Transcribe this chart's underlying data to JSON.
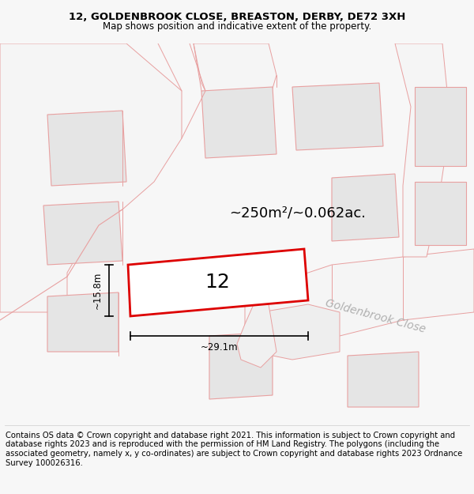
{
  "title_line1": "12, GOLDENBROOK CLOSE, BREASTON, DERBY, DE72 3XH",
  "title_line2": "Map shows position and indicative extent of the property.",
  "footer_text": "Contains OS data © Crown copyright and database right 2021. This information is subject to Crown copyright and database rights 2023 and is reproduced with the permission of HM Land Registry. The polygons (including the associated geometry, namely x, y co-ordinates) are subject to Crown copyright and database rights 2023 Ordnance Survey 100026316.",
  "area_text": "~250m²/~0.062ac.",
  "number_label": "12",
  "width_label": "~29.1m",
  "height_label": "~15.8m",
  "road_label": "Goldenbrook Close",
  "bg_color": "#f7f7f7",
  "map_bg": "#ffffff",
  "building_fill": "#e5e5e5",
  "building_stroke": "#e8a0a0",
  "road_stroke": "#e8a0a0",
  "highlight_stroke": "#dd0000",
  "highlight_fill": "#ffffff",
  "dim_color": "#000000",
  "road_text_color": "#b0b0b0",
  "title_fontsize": 9.5,
  "subtitle_fontsize": 8.5,
  "footer_fontsize": 7.2,
  "area_fontsize": 13,
  "number_fontsize": 18,
  "label_fontsize": 8.5,
  "road_label_fontsize": 10
}
